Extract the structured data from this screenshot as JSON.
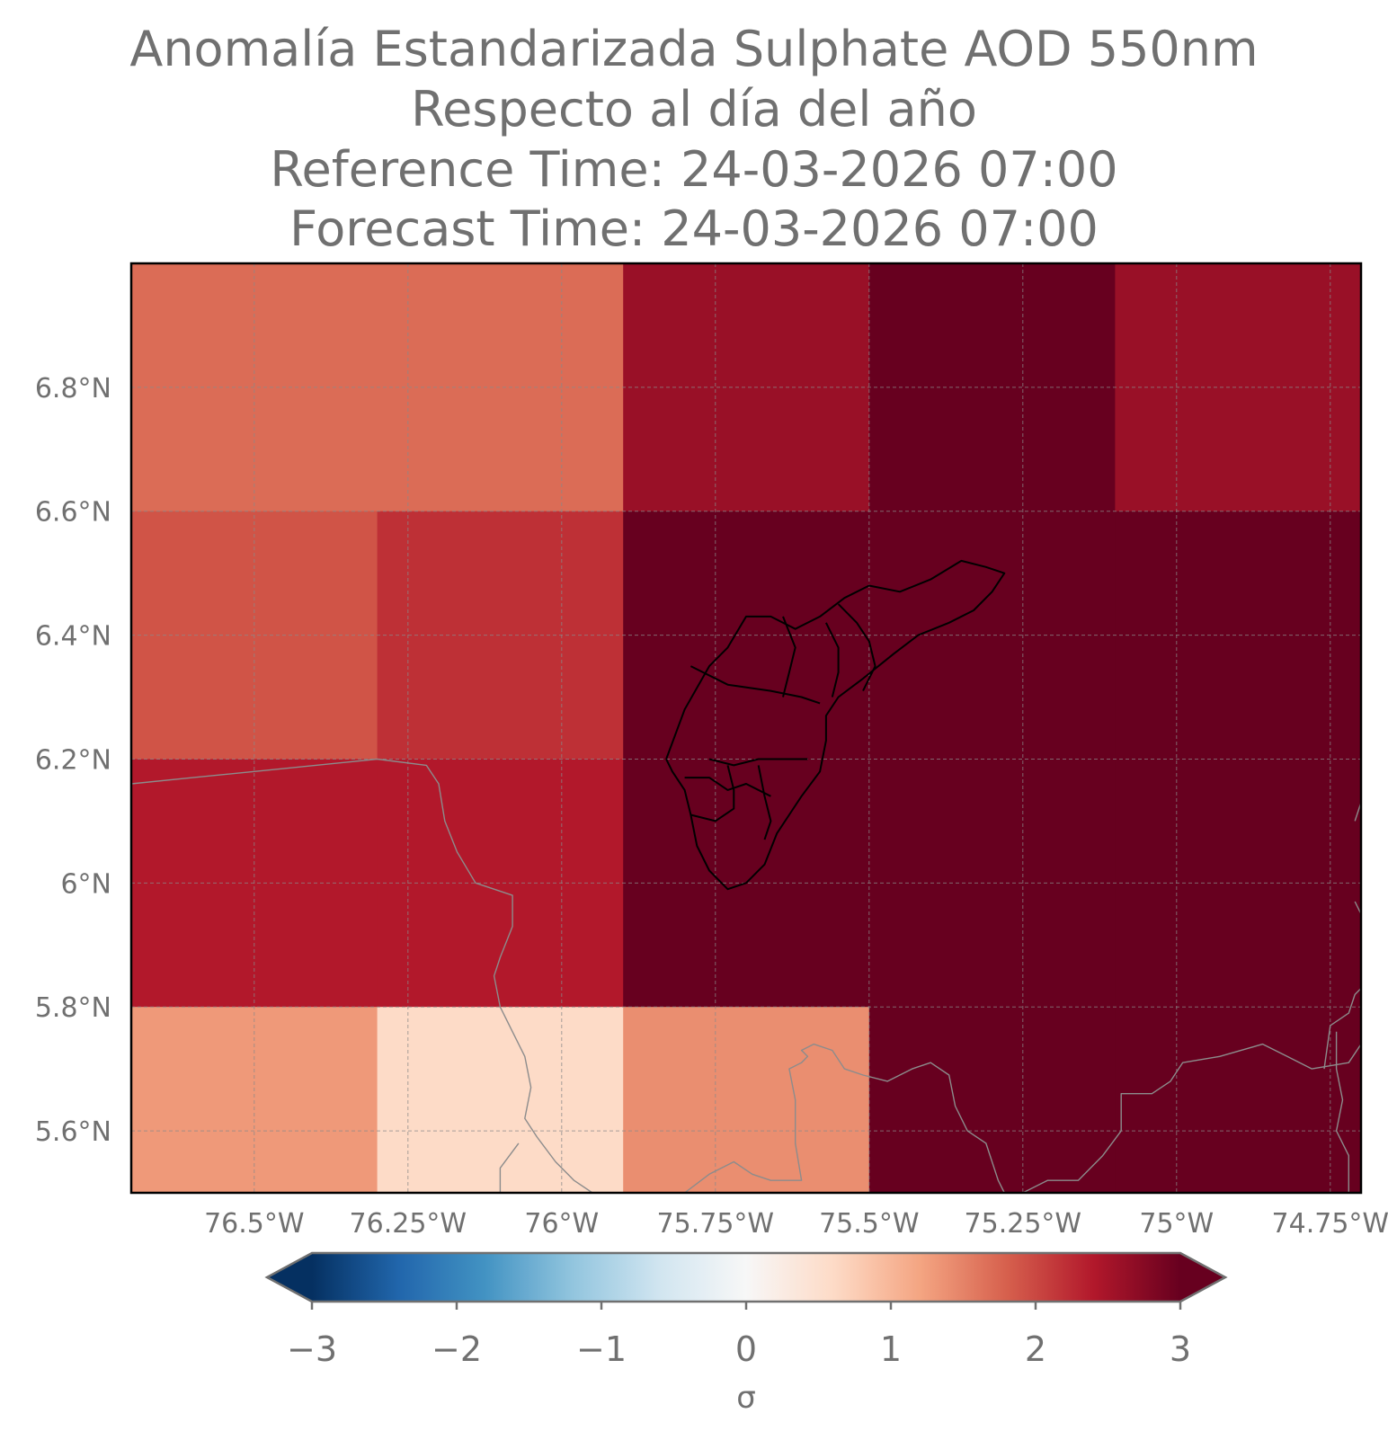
{
  "title": {
    "line1": "Anomalía Estandarizada Sulphate AOD 550nm",
    "line2": "Respecto al día del año",
    "line3": "Reference Time: 24-03-2026 07:00",
    "line4": "Forecast Time: 24-03-2026 07:00"
  },
  "chart_data": {
    "type": "heatmap",
    "projection": "PlateCarree",
    "extent": {
      "lon": [
        -76.7,
        -74.7
      ],
      "lat": [
        5.5,
        7.0
      ]
    },
    "x_ticks": [
      {
        "value": -76.5,
        "label": "76.5°W"
      },
      {
        "value": -76.25,
        "label": "76.25°W"
      },
      {
        "value": -76.0,
        "label": "76°W"
      },
      {
        "value": -75.75,
        "label": "75.75°W"
      },
      {
        "value": -75.5,
        "label": "75.5°W"
      },
      {
        "value": -75.25,
        "label": "75.25°W"
      },
      {
        "value": -75.0,
        "label": "75°W"
      },
      {
        "value": -74.75,
        "label": "74.75°W"
      }
    ],
    "y_ticks": [
      {
        "value": 5.6,
        "label": "5.6°N"
      },
      {
        "value": 5.8,
        "label": "5.8°N"
      },
      {
        "value": 6.0,
        "label": "6°N"
      },
      {
        "value": 6.2,
        "label": "6.2°N"
      },
      {
        "value": 6.4,
        "label": "6.4°N"
      },
      {
        "value": 6.6,
        "label": "6.6°N"
      },
      {
        "value": 6.8,
        "label": "6.8°N"
      }
    ],
    "grid": true,
    "cells": [
      {
        "lon": [
          -76.7,
          -76.3
        ],
        "lat": [
          6.6,
          7.0
        ],
        "value": 1.7
      },
      {
        "lon": [
          -76.3,
          -75.9
        ],
        "lat": [
          6.6,
          7.0
        ],
        "value": 1.7
      },
      {
        "lon": [
          -75.9,
          -75.5
        ],
        "lat": [
          6.6,
          7.0
        ],
        "value": 2.6
      },
      {
        "lon": [
          -75.5,
          -75.1
        ],
        "lat": [
          6.6,
          7.0
        ],
        "value": 3.1
      },
      {
        "lon": [
          -75.1,
          -74.7
        ],
        "lat": [
          6.6,
          7.0
        ],
        "value": 2.6
      },
      {
        "lon": [
          -76.7,
          -76.3
        ],
        "lat": [
          6.2,
          6.6
        ],
        "value": 1.9
      },
      {
        "lon": [
          -76.3,
          -75.9
        ],
        "lat": [
          6.2,
          6.6
        ],
        "value": 2.2
      },
      {
        "lon": [
          -75.9,
          -75.5
        ],
        "lat": [
          6.2,
          6.6
        ],
        "value": 3.1
      },
      {
        "lon": [
          -75.5,
          -75.1
        ],
        "lat": [
          6.2,
          6.6
        ],
        "value": 3.1
      },
      {
        "lon": [
          -75.1,
          -74.7
        ],
        "lat": [
          6.2,
          6.6
        ],
        "value": 3.1
      },
      {
        "lon": [
          -76.7,
          -76.3
        ],
        "lat": [
          5.8,
          6.2
        ],
        "value": 2.4
      },
      {
        "lon": [
          -76.3,
          -75.9
        ],
        "lat": [
          5.8,
          6.2
        ],
        "value": 2.4
      },
      {
        "lon": [
          -75.9,
          -75.5
        ],
        "lat": [
          5.8,
          6.2
        ],
        "value": 3.1
      },
      {
        "lon": [
          -75.5,
          -75.1
        ],
        "lat": [
          5.8,
          6.2
        ],
        "value": 3.1
      },
      {
        "lon": [
          -75.1,
          -74.7
        ],
        "lat": [
          5.8,
          6.2
        ],
        "value": 3.1
      },
      {
        "lon": [
          -76.7,
          -76.3
        ],
        "lat": [
          5.5,
          5.8
        ],
        "value": 1.3
      },
      {
        "lon": [
          -76.3,
          -75.9
        ],
        "lat": [
          5.5,
          5.8
        ],
        "value": 0.6
      },
      {
        "lon": [
          -75.9,
          -75.5
        ],
        "lat": [
          5.5,
          5.8
        ],
        "value": 1.4
      },
      {
        "lon": [
          -75.5,
          -75.1
        ],
        "lat": [
          5.5,
          5.8
        ],
        "value": 3.1
      },
      {
        "lon": [
          -75.1,
          -74.7
        ],
        "lat": [
          5.5,
          5.8
        ],
        "value": 3.1
      }
    ],
    "colorbar": {
      "colormap": "RdBu_r",
      "vmin": -3,
      "vmax": 3,
      "extend": "both",
      "label": "σ",
      "ticks": [
        {
          "value": -3,
          "label": "−3"
        },
        {
          "value": -2,
          "label": "−2"
        },
        {
          "value": -1,
          "label": "−1"
        },
        {
          "value": 0,
          "label": "0"
        },
        {
          "value": 1,
          "label": "1"
        },
        {
          "value": 2,
          "label": "2"
        },
        {
          "value": 3,
          "label": "3"
        }
      ]
    },
    "boundaries": {
      "region_outline": [
        [
          [
            -75.83,
            6.2
          ],
          [
            -75.8,
            6.28
          ],
          [
            -75.76,
            6.35
          ],
          [
            -75.73,
            6.38
          ],
          [
            -75.7,
            6.43
          ],
          [
            -75.66,
            6.43
          ],
          [
            -75.62,
            6.41
          ],
          [
            -75.58,
            6.43
          ],
          [
            -75.54,
            6.46
          ],
          [
            -75.5,
            6.48
          ],
          [
            -75.45,
            6.47
          ],
          [
            -75.4,
            6.49
          ],
          [
            -75.35,
            6.52
          ],
          [
            -75.31,
            6.51
          ],
          [
            -75.28,
            6.5
          ],
          [
            -75.3,
            6.47
          ],
          [
            -75.33,
            6.44
          ],
          [
            -75.37,
            6.42
          ],
          [
            -75.42,
            6.4
          ],
          [
            -75.46,
            6.37
          ],
          [
            -75.51,
            6.33
          ],
          [
            -75.55,
            6.3
          ],
          [
            -75.57,
            6.27
          ],
          [
            -75.57,
            6.23
          ],
          [
            -75.58,
            6.18
          ],
          [
            -75.61,
            6.14
          ],
          [
            -75.63,
            6.11
          ],
          [
            -75.65,
            6.08
          ],
          [
            -75.67,
            6.03
          ],
          [
            -75.7,
            6.0
          ],
          [
            -75.73,
            5.99
          ],
          [
            -75.76,
            6.02
          ],
          [
            -75.78,
            6.06
          ],
          [
            -75.79,
            6.11
          ],
          [
            -75.8,
            6.15
          ],
          [
            -75.82,
            6.18
          ],
          [
            -75.83,
            6.2
          ]
        ],
        [
          [
            -75.79,
            6.35
          ],
          [
            -75.73,
            6.32
          ],
          [
            -75.66,
            6.31
          ],
          [
            -75.61,
            6.3
          ],
          [
            -75.58,
            6.29
          ]
        ],
        [
          [
            -75.64,
            6.43
          ],
          [
            -75.62,
            6.38
          ],
          [
            -75.63,
            6.34
          ],
          [
            -75.64,
            6.3
          ]
        ],
        [
          [
            -75.57,
            6.42
          ],
          [
            -75.55,
            6.38
          ],
          [
            -75.55,
            6.34
          ],
          [
            -75.56,
            6.3
          ]
        ],
        [
          [
            -75.55,
            6.45
          ],
          [
            -75.52,
            6.42
          ],
          [
            -75.5,
            6.39
          ],
          [
            -75.49,
            6.35
          ],
          [
            -75.51,
            6.31
          ]
        ],
        [
          [
            -75.76,
            6.2
          ],
          [
            -75.72,
            6.19
          ],
          [
            -75.68,
            6.2
          ],
          [
            -75.64,
            6.2
          ],
          [
            -75.6,
            6.2
          ]
        ],
        [
          [
            -75.8,
            6.17
          ],
          [
            -75.76,
            6.17
          ],
          [
            -75.73,
            6.15
          ],
          [
            -75.7,
            6.16
          ],
          [
            -75.66,
            6.14
          ]
        ],
        [
          [
            -75.73,
            6.19
          ],
          [
            -75.72,
            6.15
          ],
          [
            -75.72,
            6.12
          ],
          [
            -75.75,
            6.1
          ],
          [
            -75.79,
            6.11
          ]
        ],
        [
          [
            -75.68,
            6.19
          ],
          [
            -75.67,
            6.14
          ],
          [
            -75.66,
            6.1
          ],
          [
            -75.67,
            6.07
          ]
        ]
      ],
      "context_outlines": [
        [
          [
            -76.7,
            6.16
          ],
          [
            -76.6,
            6.17
          ],
          [
            -76.5,
            6.18
          ],
          [
            -76.4,
            6.19
          ],
          [
            -76.3,
            6.2
          ],
          [
            -76.22,
            6.19
          ],
          [
            -76.2,
            6.16
          ],
          [
            -76.19,
            6.1
          ],
          [
            -76.17,
            6.05
          ],
          [
            -76.14,
            6.0
          ],
          [
            -76.11,
            5.99
          ],
          [
            -76.08,
            5.98
          ],
          [
            -76.08,
            5.93
          ],
          [
            -76.1,
            5.88
          ],
          [
            -76.11,
            5.85
          ],
          [
            -76.1,
            5.8
          ],
          [
            -76.08,
            5.76
          ],
          [
            -76.06,
            5.72
          ],
          [
            -76.05,
            5.67
          ],
          [
            -76.06,
            5.62
          ],
          [
            -76.04,
            5.59
          ],
          [
            -76.01,
            5.55
          ],
          [
            -75.98,
            5.52
          ],
          [
            -75.95,
            5.5
          ]
        ],
        [
          [
            -76.1,
            5.5
          ],
          [
            -76.1,
            5.54
          ],
          [
            -76.07,
            5.58
          ]
        ],
        [
          [
            -75.8,
            5.5
          ],
          [
            -75.76,
            5.53
          ],
          [
            -75.72,
            5.55
          ],
          [
            -75.69,
            5.53
          ],
          [
            -75.66,
            5.52
          ],
          [
            -75.63,
            5.52
          ],
          [
            -75.61,
            5.52
          ],
          [
            -75.62,
            5.58
          ],
          [
            -75.62,
            5.65
          ],
          [
            -75.63,
            5.7
          ],
          [
            -75.61,
            5.71
          ],
          [
            -75.6,
            5.72
          ],
          [
            -75.61,
            5.73
          ],
          [
            -75.59,
            5.74
          ],
          [
            -75.56,
            5.73
          ],
          [
            -75.54,
            5.7
          ],
          [
            -75.51,
            5.69
          ],
          [
            -75.47,
            5.68
          ],
          [
            -75.43,
            5.7
          ],
          [
            -75.4,
            5.71
          ],
          [
            -75.37,
            5.69
          ],
          [
            -75.36,
            5.64
          ],
          [
            -75.34,
            5.6
          ],
          [
            -75.31,
            5.58
          ],
          [
            -75.29,
            5.52
          ],
          [
            -75.28,
            5.5
          ]
        ],
        [
          [
            -75.25,
            5.5
          ],
          [
            -75.21,
            5.52
          ],
          [
            -75.16,
            5.52
          ],
          [
            -75.12,
            5.56
          ],
          [
            -75.09,
            5.6
          ],
          [
            -75.09,
            5.66
          ],
          [
            -75.04,
            5.66
          ],
          [
            -75.01,
            5.68
          ],
          [
            -74.99,
            5.71
          ],
          [
            -74.93,
            5.72
          ],
          [
            -74.86,
            5.74
          ],
          [
            -74.82,
            5.72
          ],
          [
            -74.78,
            5.7
          ],
          [
            -74.72,
            5.71
          ],
          [
            -74.7,
            5.74
          ]
        ],
        [
          [
            -74.76,
            5.7
          ],
          [
            -74.75,
            5.77
          ],
          [
            -74.72,
            5.79
          ],
          [
            -74.71,
            5.82
          ],
          [
            -74.7,
            5.83
          ]
        ],
        [
          [
            -74.74,
            5.76
          ],
          [
            -74.74,
            5.7
          ],
          [
            -74.73,
            5.65
          ],
          [
            -74.74,
            5.6
          ],
          [
            -74.72,
            5.56
          ],
          [
            -74.72,
            5.53
          ],
          [
            -74.72,
            5.5
          ]
        ],
        [
          [
            -74.71,
            6.1
          ],
          [
            -74.7,
            6.13
          ]
        ],
        [
          [
            -74.7,
            5.95
          ],
          [
            -74.71,
            5.97
          ]
        ]
      ]
    }
  }
}
